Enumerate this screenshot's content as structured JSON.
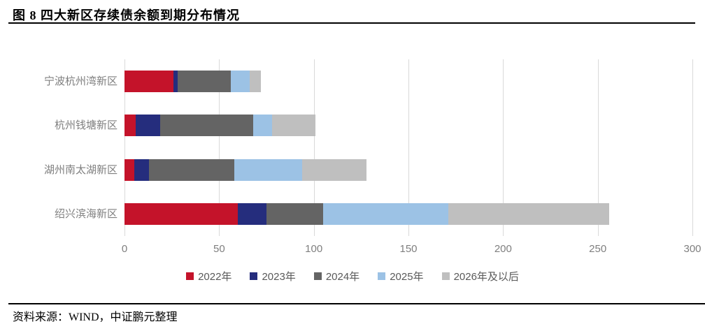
{
  "header": {
    "title": "图 8 四大新区存续债余额到期分布情况"
  },
  "footer": {
    "source": "资料来源：WIND，中证鹏元整理"
  },
  "chart_data": {
    "type": "bar",
    "orientation": "horizontal",
    "stacked": true,
    "title": "图 8 四大新区存续债余额到期分布情况",
    "categories": [
      "宁波杭州湾新区",
      "杭州钱塘新区",
      "湖州南太湖新区",
      "绍兴滨海新区"
    ],
    "series": [
      {
        "name": "2022年",
        "color": "#c4132a",
        "values": [
          26,
          6,
          5,
          60
        ]
      },
      {
        "name": "2023年",
        "color": "#252d7d",
        "values": [
          2,
          13,
          8,
          15
        ]
      },
      {
        "name": "2024年",
        "color": "#646464",
        "values": [
          28,
          49,
          45,
          30
        ]
      },
      {
        "name": "2025年",
        "color": "#9cc2e5",
        "values": [
          10,
          10,
          36,
          66
        ]
      },
      {
        "name": "2026年及以后",
        "color": "#bfbfbf",
        "values": [
          6,
          23,
          34,
          85
        ]
      }
    ],
    "totals": [
      72,
      101,
      128,
      256
    ],
    "xlim": [
      0,
      300
    ],
    "xticks": [
      0,
      50,
      100,
      150,
      200,
      250,
      300
    ],
    "xlabel": "",
    "ylabel": "",
    "grid": "vertical",
    "legend_position": "bottom",
    "gridline_color": "#d9d9d9",
    "axis_label_color": "#7f7f7f",
    "legend_text_color": "#595959"
  }
}
